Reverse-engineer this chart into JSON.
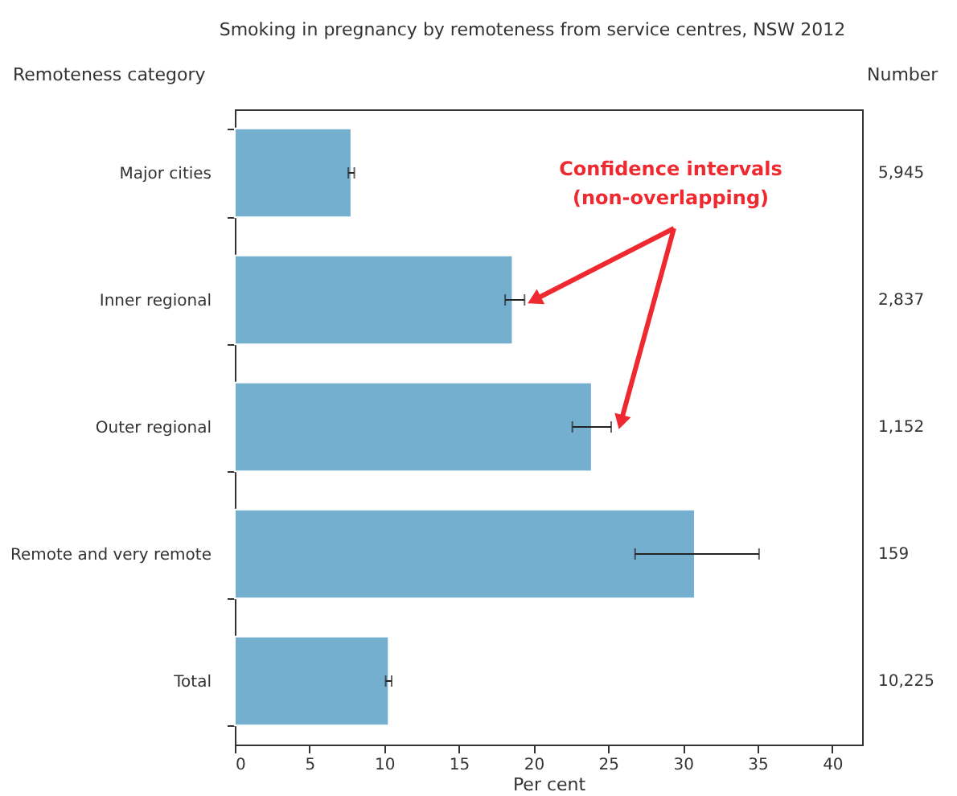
{
  "chart_data": {
    "type": "bar",
    "orientation": "horizontal",
    "title": "Smoking in pregnancy by remoteness from service centres, NSW 2012",
    "ylabel": "Remoteness category",
    "xlabel": "Per cent",
    "categories": [
      "Major cities",
      "Inner regional",
      "Outer regional",
      "Remote and very remote",
      "Total"
    ],
    "values": [
      7.8,
      18.6,
      23.9,
      30.8,
      10.3
    ],
    "errors": [
      [
        7.6,
        8.0
      ],
      [
        18.1,
        19.4
      ],
      [
        22.6,
        25.2
      ],
      [
        26.8,
        35.1
      ],
      [
        10.1,
        10.5
      ]
    ],
    "color": "#74afcf",
    "xlim": [
      0,
      42
    ],
    "xticks": [
      0,
      5,
      10,
      15,
      20,
      25,
      30,
      35,
      40
    ],
    "grid": false,
    "annotations": [
      "Number",
      {
        "text": "Confidence intervals\n(non-overlapping)",
        "x": 19.4,
        "y": "Inner regional"
      },
      "5,945",
      "2,837",
      "1,152",
      "159",
      "10,225"
    ]
  }
}
